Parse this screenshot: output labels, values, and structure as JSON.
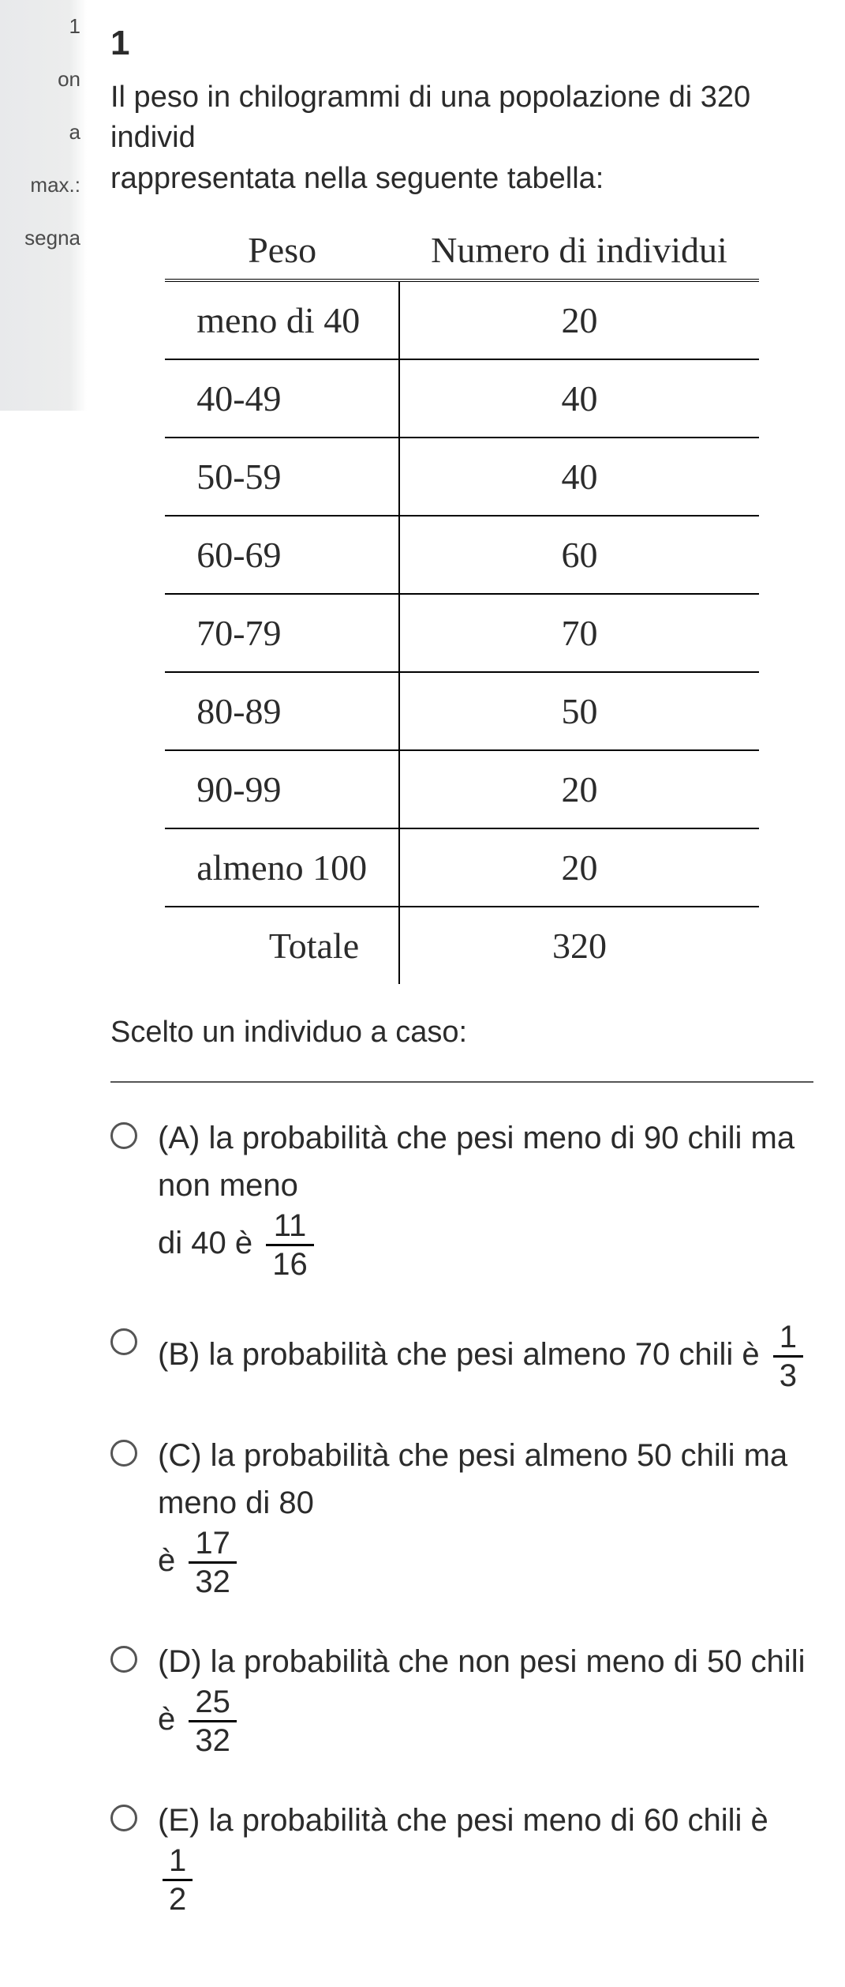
{
  "left_rail": {
    "items": [
      "1",
      "on",
      "a",
      "max.:",
      "segna"
    ]
  },
  "question": {
    "number": "1",
    "intro_line1": "Il peso in chilogrammi di una popolazione di 320 individ",
    "intro_line2": "rappresentata nella seguente tabella:"
  },
  "table": {
    "headers": [
      "Peso",
      "Numero di individui"
    ],
    "rows": [
      [
        "meno di 40",
        "20"
      ],
      [
        "40-49",
        "40"
      ],
      [
        "50-59",
        "40"
      ],
      [
        "60-69",
        "60"
      ],
      [
        "70-79",
        "70"
      ],
      [
        "80-89",
        "50"
      ],
      [
        "90-99",
        "20"
      ],
      [
        "almeno 100",
        "20"
      ]
    ],
    "total_label": "Totale",
    "total_value": "320"
  },
  "prompt": "Scelto un individuo a caso:",
  "options": {
    "A": {
      "letter": "(A)",
      "text_main": "la probabilità che pesi meno di 90 chili ma non meno",
      "text_cont": "di 40 è",
      "frac_num": "11",
      "frac_den": "16"
    },
    "B": {
      "letter": "(B)",
      "text_main": "la probabilità che pesi almeno 70 chili è",
      "frac_num": "1",
      "frac_den": "3"
    },
    "C": {
      "letter": "(C)",
      "text_main": "la probabilità che pesi almeno 50 chili ma meno di 80",
      "text_cont": "è",
      "frac_num": "17",
      "frac_den": "32"
    },
    "D": {
      "letter": "(D)",
      "text_main": "la probabilità che non pesi meno di 50 chili è",
      "frac_num": "25",
      "frac_den": "32"
    },
    "E": {
      "letter": "(E)",
      "text_main": "la probabilità che pesi meno di 60 chili è",
      "frac_num": "1",
      "frac_den": "2"
    }
  }
}
